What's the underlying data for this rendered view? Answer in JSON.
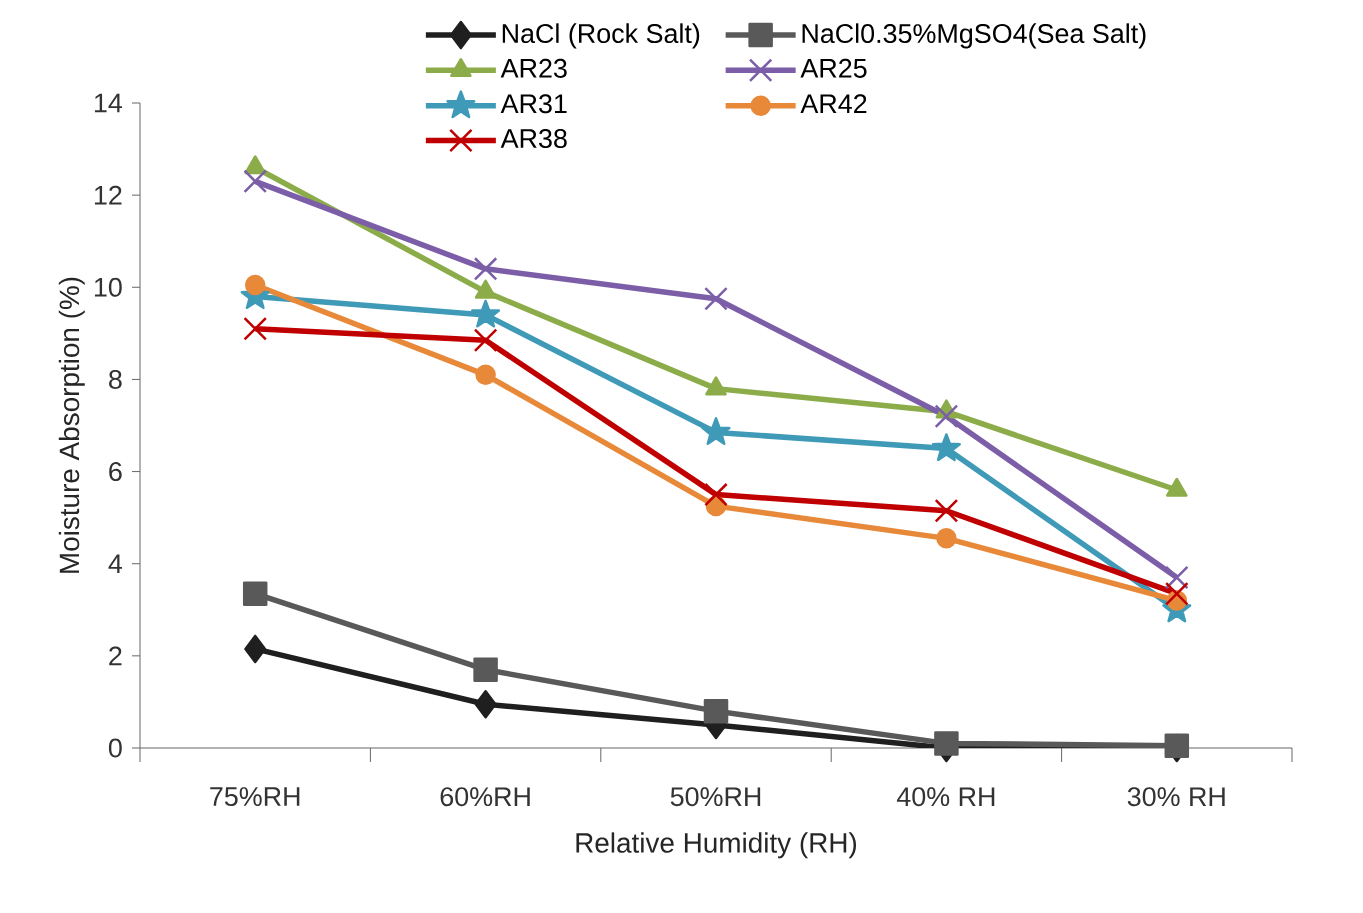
{
  "chart_data": {
    "type": "line",
    "xlabel": "Relative Humidity (RH)",
    "ylabel": "Moisture Absorption (%)",
    "categories": [
      "75%RH",
      "60%RH",
      "50%RH",
      "40% RH",
      "30% RH"
    ],
    "ylim": [
      0,
      14
    ],
    "yticks": [
      0,
      2,
      4,
      6,
      8,
      10,
      12,
      14
    ],
    "legend": "top",
    "line_style": "solid",
    "series": [
      {
        "name": "NaCl (Rock Salt)",
        "color": "#1f1f1f",
        "marker": "diamond",
        "values": [
          2.15,
          0.95,
          0.5,
          0,
          0
        ]
      },
      {
        "name": "NaCl0.35%MgSO4(Sea Salt)",
        "color": "#595959",
        "marker": "square",
        "values": [
          3.35,
          1.7,
          0.8,
          0.1,
          0.05
        ]
      },
      {
        "name": "AR23",
        "color": "#8cac4a",
        "marker": "triangle",
        "values": [
          12.6,
          9.9,
          7.8,
          7.3,
          5.6
        ]
      },
      {
        "name": "AR25",
        "color": "#7b5ea7",
        "marker": "cross",
        "values": [
          12.3,
          10.4,
          9.75,
          7.2,
          3.7
        ]
      },
      {
        "name": "AR31",
        "color": "#3f9ab8",
        "marker": "star",
        "values": [
          9.8,
          9.4,
          6.85,
          6.5,
          3.0
        ]
      },
      {
        "name": "AR42",
        "color": "#e8893a",
        "marker": "circle",
        "values": [
          10.05,
          8.1,
          5.25,
          4.55,
          3.2
        ]
      },
      {
        "name": "AR38",
        "color": "#c00000",
        "marker": "cross",
        "values": [
          9.1,
          8.85,
          5.5,
          5.15,
          3.35
        ]
      }
    ]
  }
}
